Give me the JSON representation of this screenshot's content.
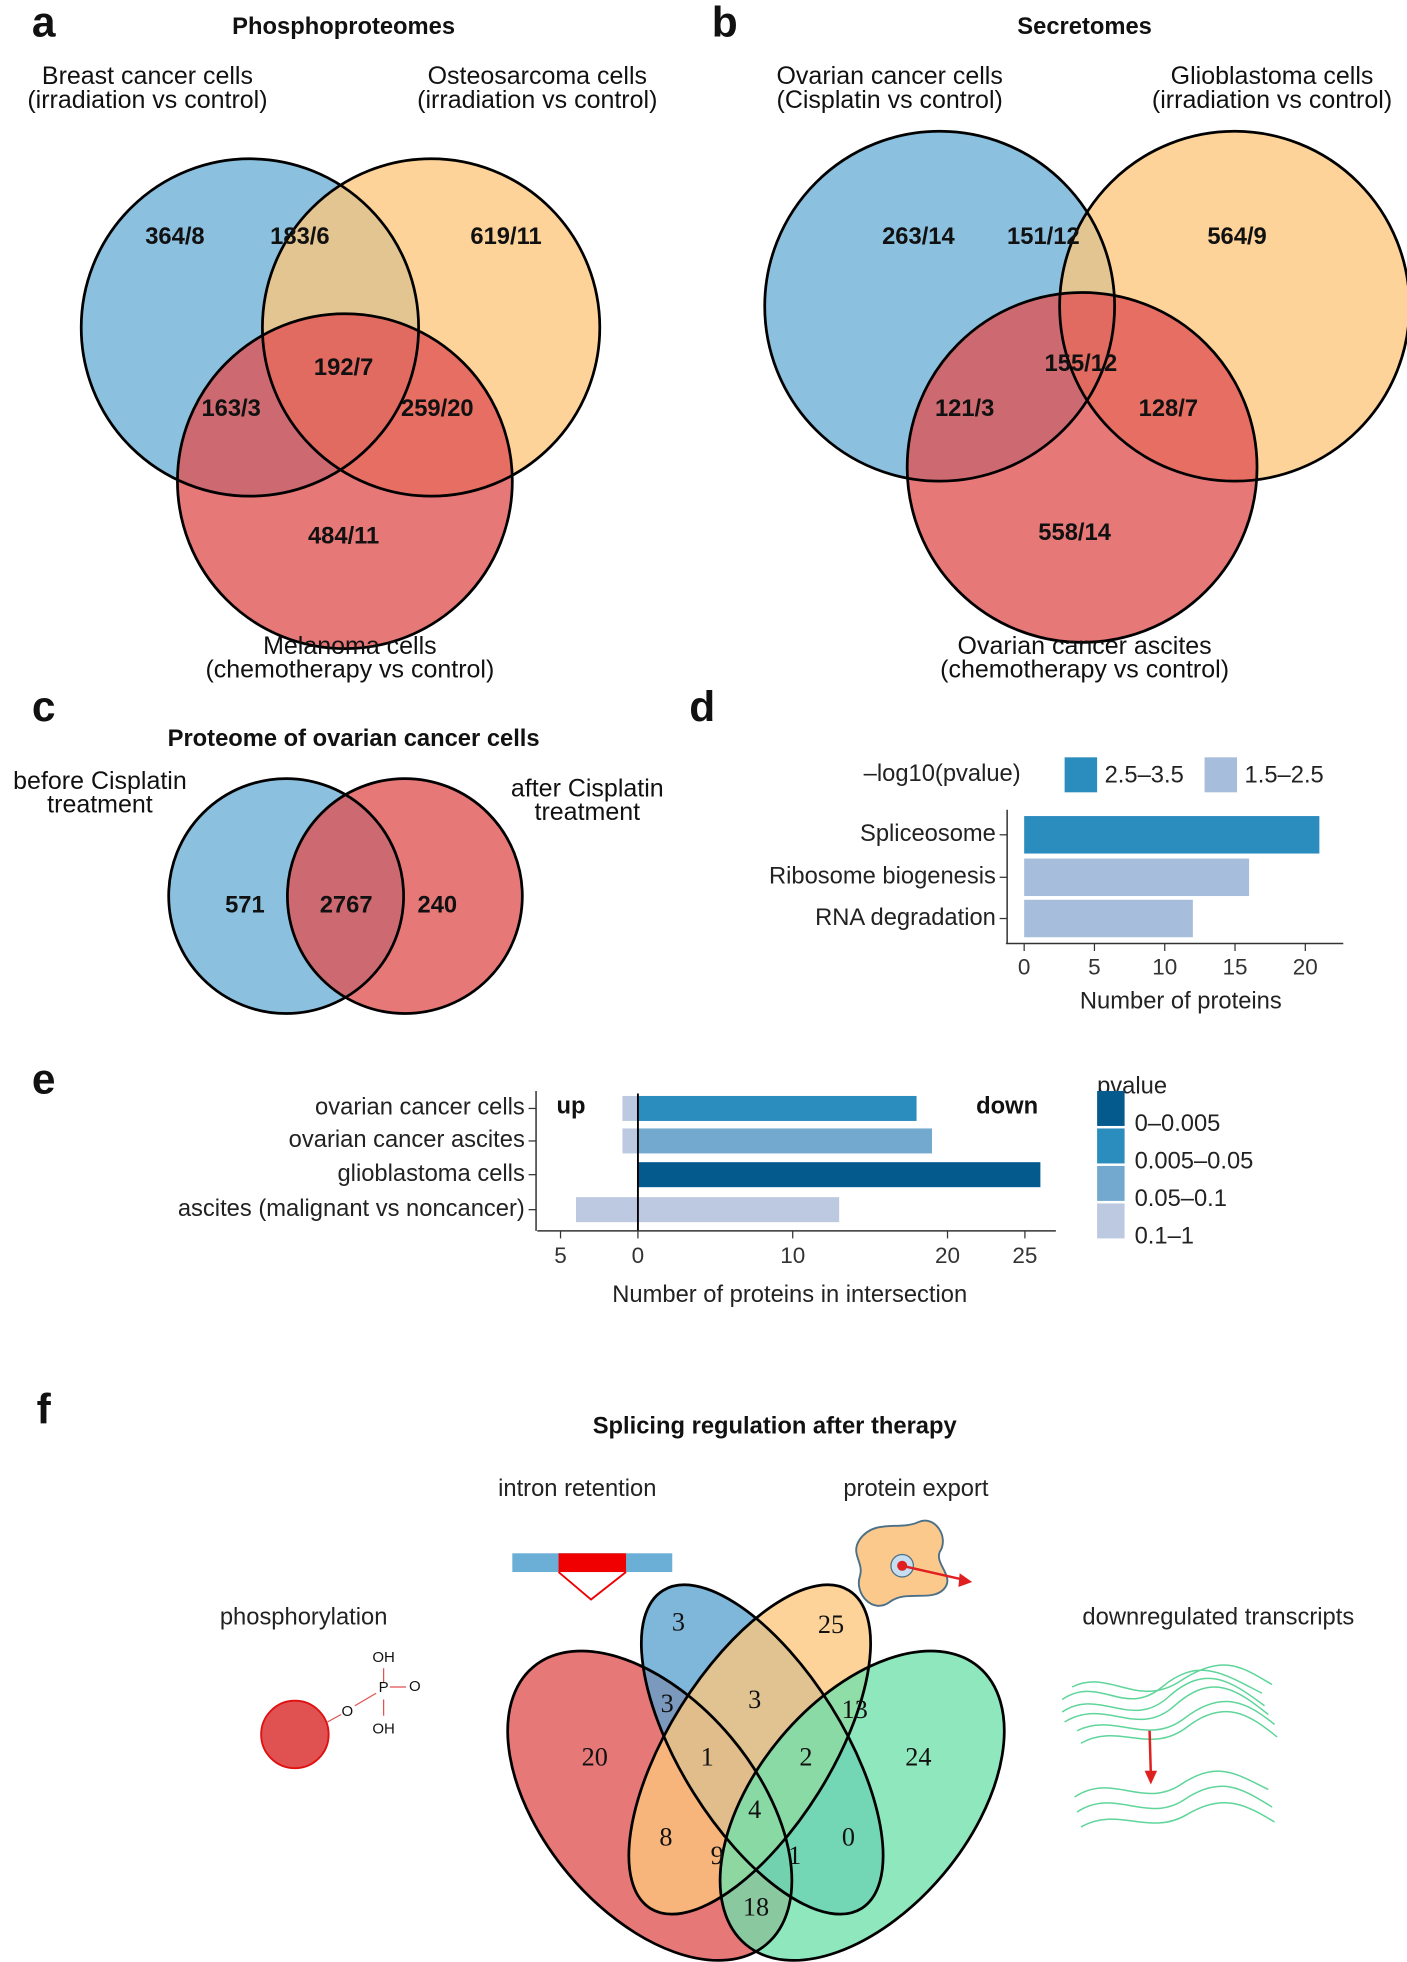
{
  "chart_data": [
    {
      "type": "venn3",
      "panel": "a",
      "title": "Phosphoproteomes",
      "sets": [
        {
          "name": [
            "Breast cancer cells",
            "(irradiation vs control)"
          ],
          "color": "#6aaed6"
        },
        {
          "name": [
            "Osteosarcoma cells",
            "(irradiation vs control)"
          ],
          "color": "#fdc77c"
        },
        {
          "name": [
            "Melanoma cells",
            "(chemotherapy vs control)"
          ],
          "color": "#e05252"
        }
      ],
      "region_labels": [
        "364/8",
        "183/6",
        "619/11",
        "192/7",
        "163/3",
        "259/20",
        "484/11"
      ]
    },
    {
      "type": "venn3",
      "panel": "b",
      "title": "Secretomes",
      "sets": [
        {
          "name": [
            "Ovarian cancer cells",
            "(Cisplatin vs control)"
          ],
          "color": "#6aaed6"
        },
        {
          "name": [
            "Glioblastoma cells",
            "(irradiation vs control)"
          ],
          "color": "#fdc77c"
        },
        {
          "name": [
            "Ovarian cancer ascites",
            "(chemotherapy vs control)"
          ],
          "color": "#e05252"
        }
      ],
      "region_labels": [
        "263/14",
        "151/12",
        "564/9",
        "155/12",
        "121/3",
        "128/7",
        "558/14"
      ]
    },
    {
      "type": "venn2",
      "panel": "c",
      "title": "Proteome of ovarian cancer cells",
      "sets": [
        {
          "name": [
            "before Cisplatin",
            "treatment"
          ],
          "color": "#6aaed6"
        },
        {
          "name": [
            "after Cisplatin",
            "treatment"
          ],
          "color": "#e05252"
        }
      ],
      "values": [
        571,
        2767,
        240
      ]
    },
    {
      "type": "bar",
      "panel": "d",
      "orientation": "horizontal",
      "categories": [
        "Spliceosome",
        "Ribosome biogenesis",
        "RNA degradation"
      ],
      "values": [
        21,
        16,
        12
      ],
      "colors": [
        "#2b8cbe",
        "#a6bddb",
        "#a6bddb"
      ],
      "legend_title": "–log10(pvalue)",
      "legend": [
        {
          "name": "2.5–3.5",
          "color": "#2b8cbe"
        },
        {
          "name": "1.5–2.5",
          "color": "#a6bddb"
        }
      ],
      "xlabel": "Number of proteins",
      "xlim": [
        -1.3,
        22.7
      ],
      "xticks": [
        0,
        5,
        10,
        15,
        20
      ]
    },
    {
      "type": "diverging-bar",
      "panel": "e",
      "categories": [
        "ovarian cancer cells",
        "ovarian cancer ascites",
        "glioblastoma cells",
        "ascites (malignant vs noncancer)"
      ],
      "series": [
        {
          "name": "up",
          "values": [
            -1,
            -1,
            0,
            -4
          ],
          "colors": [
            "#bdc9e1",
            "#bdc9e1",
            "#bdc9e1",
            "#bdc9e1"
          ]
        },
        {
          "name": "down",
          "values": [
            18,
            19,
            26,
            13
          ],
          "colors": [
            "#2b8cbe",
            "#74a9cf",
            "#045a8d",
            "#bdc9e1"
          ]
        }
      ],
      "legend_title": "pvalue",
      "legend": [
        {
          "name": "0–0.005",
          "color": "#045a8d"
        },
        {
          "name": "0.005–0.05",
          "color": "#2b8cbe"
        },
        {
          "name": "0.05–0.1",
          "color": "#74a9cf"
        },
        {
          "name": "0.1–1",
          "color": "#bdc9e1"
        }
      ],
      "xlabel": "Number of proteins in intersection",
      "xlim": [
        -6.5,
        27
      ],
      "xticks": [
        {
          "value": -5,
          "label": "5"
        },
        0,
        10,
        20,
        25
      ]
    },
    {
      "type": "venn4",
      "panel": "f",
      "title": "Splicing regulation after therapy",
      "sets": [
        {
          "name": "phosphorylation",
          "color": "#e05252"
        },
        {
          "name": "intron retention",
          "color": "#5ba3d0"
        },
        {
          "name": "protein export",
          "color": "#fdc77c"
        },
        {
          "name": "downregulated transcripts",
          "color": "#6fe0aa"
        }
      ],
      "values": [
        3,
        25,
        20,
        3,
        3,
        13,
        24,
        1,
        2,
        4,
        8,
        0,
        9,
        1,
        18
      ]
    }
  ]
}
